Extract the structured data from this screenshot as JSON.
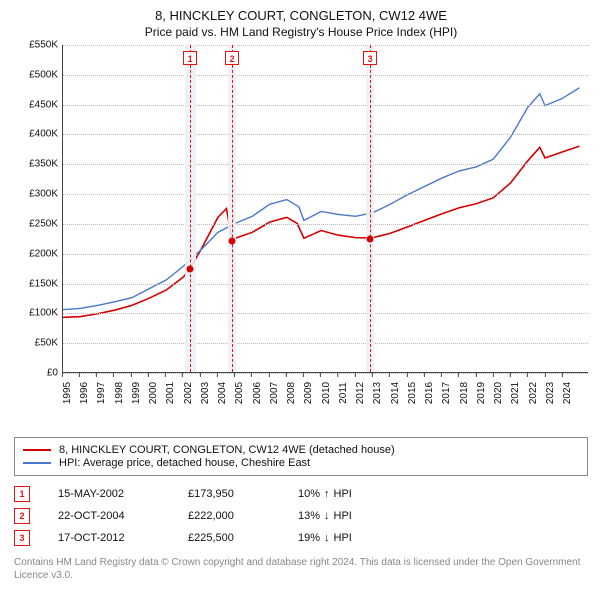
{
  "title": "8, HINCKLEY COURT, CONGLETON, CW12 4WE",
  "subtitle": "Price paid vs. HM Land Registry's House Price Index (HPI)",
  "chart": {
    "type": "line",
    "background_color": "#ffffff",
    "grid_color": "#bbbbbb",
    "font_family": "Arial",
    "title_fontsize": 13,
    "label_fontsize": 10,
    "x": {
      "min": 1995,
      "max": 2025.5,
      "ticks": [
        1995,
        1996,
        1997,
        1998,
        1999,
        2000,
        2001,
        2002,
        2003,
        2004,
        2005,
        2006,
        2007,
        2008,
        2009,
        2010,
        2011,
        2012,
        2013,
        2014,
        2015,
        2016,
        2017,
        2018,
        2019,
        2020,
        2021,
        2022,
        2023,
        2024
      ],
      "tick_rotation": -90
    },
    "y": {
      "min": 0,
      "max": 550000,
      "ticks": [
        0,
        50000,
        100000,
        150000,
        200000,
        250000,
        300000,
        350000,
        400000,
        450000,
        500000,
        550000
      ],
      "tick_labels": [
        "£0",
        "£50K",
        "£100K",
        "£150K",
        "£200K",
        "£250K",
        "£300K",
        "£350K",
        "£400K",
        "£450K",
        "£500K",
        "£550K"
      ]
    },
    "shaded_bands": [
      {
        "from": 2002.1,
        "to": 2002.7,
        "color": "#eceff4"
      },
      {
        "from": 2004.55,
        "to": 2005.05,
        "color": "#eceff4"
      },
      {
        "from": 2012.55,
        "to": 2013.05,
        "color": "#eceff4"
      }
    ],
    "event_markers": [
      {
        "n": "1",
        "x": 2002.37,
        "y": 173950,
        "dashed_line_color": "#e11"
      },
      {
        "n": "2",
        "x": 2004.81,
        "y": 222000,
        "dashed_line_color": "#e11"
      },
      {
        "n": "3",
        "x": 2012.8,
        "y": 225500,
        "dashed_line_color": "#e11"
      }
    ],
    "series": [
      {
        "name": "8, HINCKLEY COURT, CONGLETON, CW12 4WE (detached house)",
        "color": "#d40000",
        "line_width": 1.6,
        "points": [
          [
            1995,
            92000
          ],
          [
            1996,
            93000
          ],
          [
            1997,
            98000
          ],
          [
            1998,
            104000
          ],
          [
            1999,
            112000
          ],
          [
            2000,
            124000
          ],
          [
            2001,
            138000
          ],
          [
            2002,
            160000
          ],
          [
            2002.37,
            173950
          ],
          [
            2003,
            205000
          ],
          [
            2004,
            260000
          ],
          [
            2004.5,
            275000
          ],
          [
            2004.81,
            222000
          ],
          [
            2005,
            225000
          ],
          [
            2006,
            235000
          ],
          [
            2007,
            252000
          ],
          [
            2008,
            260000
          ],
          [
            2008.6,
            250000
          ],
          [
            2009,
            225000
          ],
          [
            2010,
            238000
          ],
          [
            2011,
            230000
          ],
          [
            2012,
            226000
          ],
          [
            2012.8,
            225500
          ],
          [
            2013,
            226000
          ],
          [
            2014,
            233000
          ],
          [
            2015,
            244000
          ],
          [
            2016,
            255000
          ],
          [
            2017,
            266000
          ],
          [
            2018,
            276000
          ],
          [
            2019,
            283000
          ],
          [
            2020,
            293000
          ],
          [
            2021,
            318000
          ],
          [
            2022,
            355000
          ],
          [
            2022.7,
            378000
          ],
          [
            2023,
            360000
          ],
          [
            2024,
            370000
          ],
          [
            2025,
            380000
          ]
        ]
      },
      {
        "name": "HPI: Average price, detached house, Cheshire East",
        "color": "#4a78c9",
        "line_width": 1.4,
        "points": [
          [
            1995,
            105000
          ],
          [
            1996,
            107000
          ],
          [
            1997,
            112000
          ],
          [
            1998,
            118000
          ],
          [
            1999,
            125000
          ],
          [
            2000,
            140000
          ],
          [
            2001,
            155000
          ],
          [
            2002,
            178000
          ],
          [
            2003,
            205000
          ],
          [
            2004,
            235000
          ],
          [
            2005,
            250000
          ],
          [
            2006,
            262000
          ],
          [
            2007,
            282000
          ],
          [
            2008,
            290000
          ],
          [
            2008.7,
            278000
          ],
          [
            2009,
            255000
          ],
          [
            2010,
            270000
          ],
          [
            2011,
            265000
          ],
          [
            2012,
            262000
          ],
          [
            2013,
            268000
          ],
          [
            2014,
            282000
          ],
          [
            2015,
            298000
          ],
          [
            2016,
            312000
          ],
          [
            2017,
            326000
          ],
          [
            2018,
            338000
          ],
          [
            2019,
            345000
          ],
          [
            2020,
            358000
          ],
          [
            2021,
            395000
          ],
          [
            2022,
            445000
          ],
          [
            2022.7,
            468000
          ],
          [
            2023,
            448000
          ],
          [
            2024,
            460000
          ],
          [
            2025,
            478000
          ]
        ]
      }
    ]
  },
  "legend": {
    "border_color": "#888888",
    "items": [
      {
        "color": "#d40000",
        "label": "8, HINCKLEY COURT, CONGLETON, CW12 4WE (detached house)"
      },
      {
        "color": "#4a78c9",
        "label": "HPI: Average price, detached house, Cheshire East"
      }
    ]
  },
  "events": [
    {
      "n": "1",
      "date": "15-MAY-2002",
      "price": "£173,950",
      "diff_pct": "10%",
      "arrow": "↑",
      "diff_label": "HPI"
    },
    {
      "n": "2",
      "date": "22-OCT-2004",
      "price": "£222,000",
      "diff_pct": "13%",
      "arrow": "↓",
      "diff_label": "HPI"
    },
    {
      "n": "3",
      "date": "17-OCT-2012",
      "price": "£225,500",
      "diff_pct": "19%",
      "arrow": "↓",
      "diff_label": "HPI"
    }
  ],
  "footer": "Contains HM Land Registry data © Crown copyright and database right 2024. This data is licensed under the Open Government Licence v3.0."
}
